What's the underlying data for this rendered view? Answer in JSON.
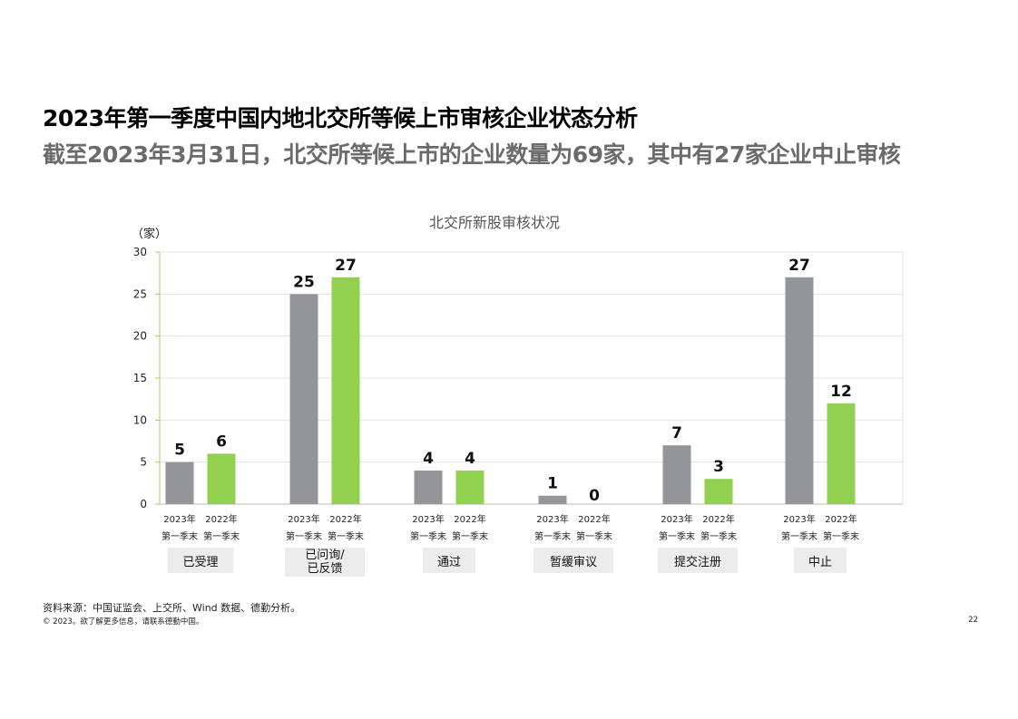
{
  "header": {
    "title": "2023年第一季度中国内地北交所等候上市审核企业状态分析",
    "subtitle": "截至2023年3月31日，北交所等候上市的企业数量为69家，其中有27家企业中止审核"
  },
  "footer": {
    "source": "资料来源：中国证监会、上交所、Wind 数据、德勤分析。",
    "copyright": "© 2023。欲了解更多信息，请联系德勤中国。",
    "page_number": "22"
  },
  "colors": {
    "series_2023": "#939598",
    "series_2022": "#92d050",
    "grid": "#e3e3e3",
    "axis": "#9bcf5d",
    "label_box": "#ececec"
  },
  "chart_data": {
    "type": "bar",
    "title": "北交所新股审核状况",
    "ylabel": "（家）",
    "xlabel": "",
    "ylim": [
      0,
      30
    ],
    "yticks": [
      "0",
      "5",
      "10",
      "15",
      "20",
      "25",
      "30"
    ],
    "grid": true,
    "categories": [
      "已受理",
      "已问询/\n已反馈",
      "通过",
      "暂缓审议",
      "提交注册",
      "中止"
    ],
    "bar_labels": [
      [
        "2023年\n第一季末",
        "2022年\n第一季末"
      ],
      [
        "2023年\n第一季末",
        "2022年\n第一季末"
      ],
      [
        "2023年\n第一季末",
        "2022年\n第一季末"
      ],
      [
        "2023年\n第一季末",
        "2022年\n第一季末"
      ],
      [
        "2023年\n第一季末",
        "2022年\n第一季末"
      ],
      [
        "2023年\n第一季末",
        "2022年\n第一季末"
      ]
    ],
    "series": [
      {
        "values": [
          5,
          25,
          4,
          1,
          7,
          27
        ]
      },
      {
        "values": [
          6,
          27,
          4,
          0,
          3,
          12
        ]
      }
    ]
  }
}
